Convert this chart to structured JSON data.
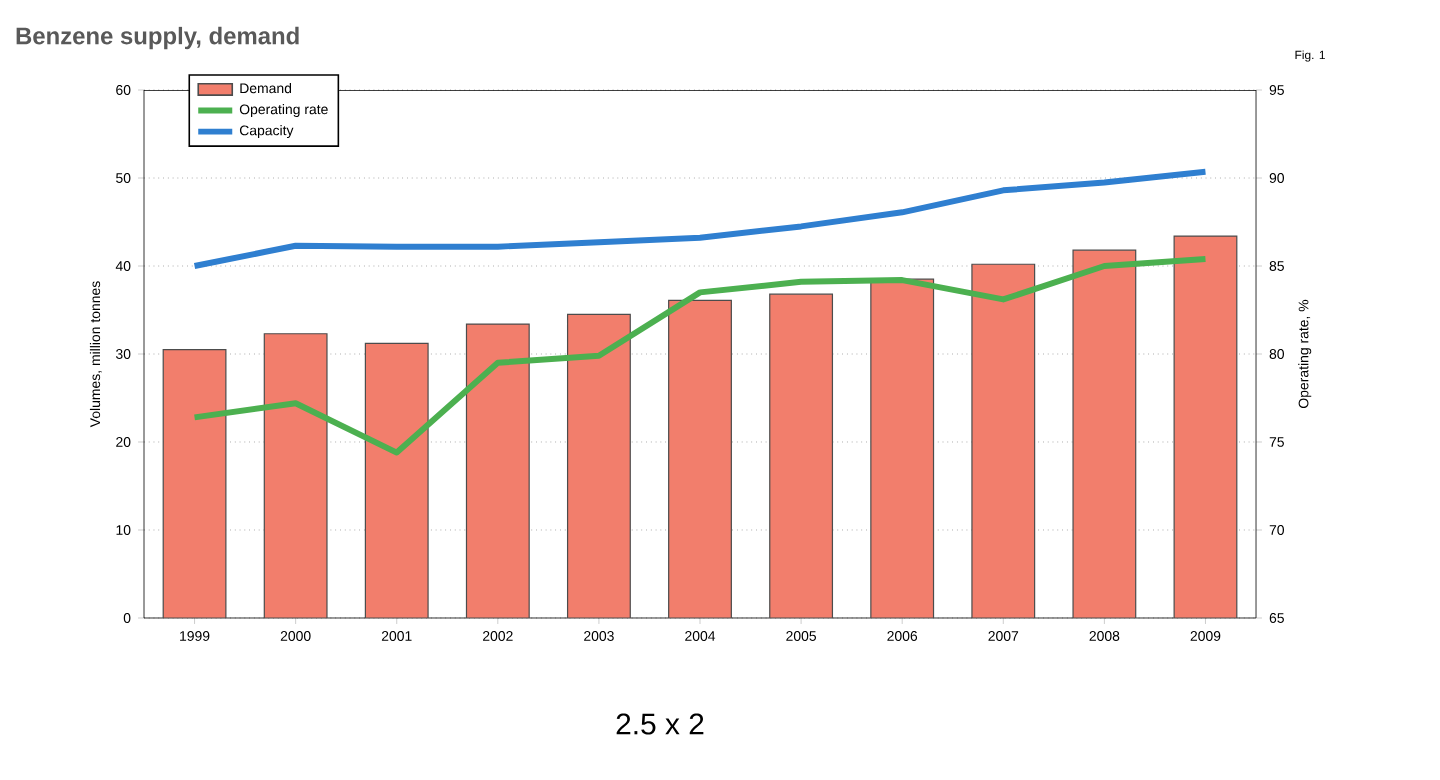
{
  "chart_data": {
    "type": "bar",
    "title": "Benzene supply, demand",
    "categories": [
      "1999",
      "2000",
      "2001",
      "2002",
      "2003",
      "2004",
      "2005",
      "2006",
      "2007",
      "2008",
      "2009"
    ],
    "series": [
      {
        "name": "Demand",
        "color": "#f27e6c",
        "values": [
          30.5,
          32.3,
          31.2,
          33.4,
          34.5,
          36.1,
          36.8,
          38.5,
          40.2,
          41.8,
          43.4
        ]
      },
      {
        "name": "Operating rate",
        "type": "line",
        "axis": "y2",
        "color": "#4cb050",
        "values": [
          76.4,
          77.2,
          74.4,
          79.5,
          79.9,
          83.5,
          84.1,
          84.2,
          83.1,
          85.0,
          85.4
        ]
      },
      {
        "name": "Capacity",
        "type": "line",
        "color": "#2f7fd0",
        "values": [
          40.0,
          42.3,
          42.2,
          42.2,
          42.7,
          43.2,
          44.5,
          46.1,
          48.6,
          49.5,
          50.7
        ]
      }
    ],
    "ylabel": "Volumes, million tonnes",
    "y2label": "Operating rate, %",
    "ylim": [
      0,
      60
    ],
    "yticks": [
      0,
      10,
      20,
      30,
      40,
      50,
      60
    ],
    "y2lim": [
      65,
      95
    ],
    "y2ticks": [
      65,
      70,
      75,
      80,
      85,
      90,
      95
    ],
    "grid": "y",
    "legend": "top left",
    "annotations": [
      "Fig. 1",
      "2.5 x 2"
    ]
  }
}
